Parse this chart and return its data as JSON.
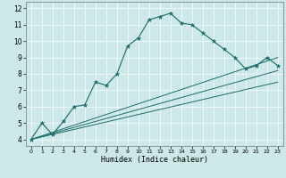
{
  "xlabel": "Humidex (Indice chaleur)",
  "bg_color": "#cce8e8",
  "line_color": "#1a6b6b",
  "xlim": [
    -0.5,
    23.5
  ],
  "ylim": [
    3.6,
    12.4
  ],
  "xticks": [
    0,
    1,
    2,
    3,
    4,
    5,
    6,
    7,
    8,
    9,
    10,
    11,
    12,
    13,
    14,
    15,
    16,
    17,
    18,
    19,
    20,
    21,
    22,
    23
  ],
  "yticks": [
    4,
    5,
    6,
    7,
    8,
    9,
    10,
    11,
    12
  ],
  "main_x": [
    0,
    1,
    2,
    3,
    4,
    5,
    6,
    7,
    8,
    9,
    10,
    11,
    12,
    13,
    14,
    15,
    16,
    17,
    18,
    19,
    20,
    21,
    22,
    23
  ],
  "main_y": [
    4.0,
    5.0,
    4.3,
    5.1,
    6.0,
    6.1,
    7.5,
    7.3,
    8.0,
    9.7,
    10.2,
    11.3,
    11.5,
    11.7,
    11.1,
    11.0,
    10.5,
    10.0,
    9.5,
    9.0,
    8.3,
    8.5,
    9.0,
    8.5
  ],
  "ref_lines": [
    {
      "x": [
        0,
        23
      ],
      "y": [
        4.0,
        9.0
      ]
    },
    {
      "x": [
        0,
        23
      ],
      "y": [
        4.0,
        8.2
      ]
    },
    {
      "x": [
        0,
        23
      ],
      "y": [
        4.0,
        7.5
      ]
    }
  ],
  "grid_color": "#ffffff",
  "xlabel_fontsize": 6.0,
  "tick_fontsize_x": 4.5,
  "tick_fontsize_y": 5.5
}
